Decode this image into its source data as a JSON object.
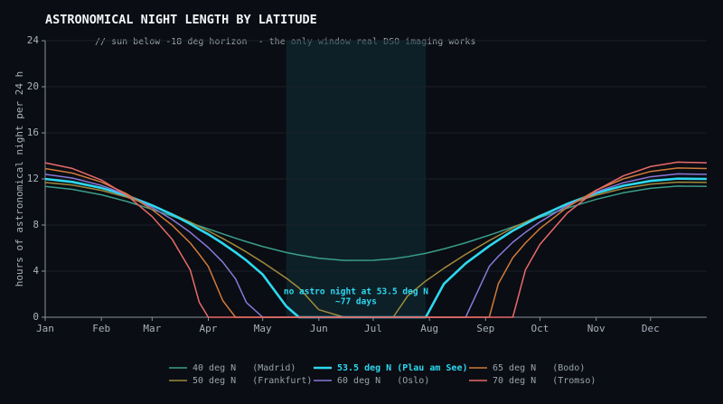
{
  "chart_data": {
    "type": "line",
    "title": "ASTRONOMICAL NIGHT LENGTH BY LATITUDE",
    "subtitle": "// sun below -18 deg horizon  - the only window real DSO imaging works",
    "y_label": "hours of astronomical night per 24 h",
    "annotation": [
      "no astro night at 53.5 deg N",
      "~77 days"
    ],
    "shade_xlim": [
      133,
      210
    ],
    "x": [
      0,
      15,
      31,
      45,
      59,
      70,
      80,
      85,
      90,
      98,
      105,
      111,
      120,
      133,
      140,
      151,
      165,
      181,
      192,
      200,
      210,
      220,
      232,
      245,
      250,
      258,
      265,
      273,
      288,
      304,
      319,
      334,
      349,
      365
    ],
    "xlim": [
      0,
      365
    ],
    "xticks": [
      {
        "value": 0,
        "label": "Jan"
      },
      {
        "value": 31,
        "label": "Feb"
      },
      {
        "value": 59,
        "label": "Mar"
      },
      {
        "value": 90,
        "label": "Apr"
      },
      {
        "value": 120,
        "label": "May"
      },
      {
        "value": 151,
        "label": "Jun"
      },
      {
        "value": 181,
        "label": "Jul"
      },
      {
        "value": 212,
        "label": "Aug"
      },
      {
        "value": 243,
        "label": "Sep"
      },
      {
        "value": 273,
        "label": "Oct"
      },
      {
        "value": 304,
        "label": "Nov"
      },
      {
        "value": 334,
        "label": "Dec"
      }
    ],
    "ylim": [
      0,
      24
    ],
    "yticks": [
      0,
      4,
      8,
      12,
      16,
      20,
      24
    ],
    "grid": true,
    "legend": "bottom",
    "series": [
      {
        "name": "40 deg N   (Madrid)",
        "color": "#3a9e8c",
        "line_width": 1.5,
        "values": [
          11.35,
          11.1,
          10.63,
          10.05,
          9.36,
          8.78,
          8.22,
          7.92,
          7.66,
          7.23,
          6.86,
          6.56,
          6.14,
          5.62,
          5.4,
          5.12,
          4.93,
          4.94,
          5.08,
          5.26,
          5.55,
          5.93,
          6.46,
          7.12,
          7.39,
          7.84,
          8.22,
          8.66,
          9.47,
          10.23,
          10.8,
          11.19,
          11.38,
          11.35
        ]
      },
      {
        "name": "50 deg N   (Frankfurt)",
        "color": "#a08a3a",
        "line_width": 1.5,
        "values": [
          11.7,
          11.47,
          11.01,
          10.42,
          9.66,
          8.97,
          8.26,
          7.86,
          7.49,
          6.83,
          6.21,
          5.66,
          4.77,
          3.39,
          2.55,
          0.65,
          0,
          0,
          0,
          1.85,
          3.15,
          4.25,
          5.46,
          6.65,
          7.08,
          7.75,
          8.26,
          8.84,
          9.78,
          10.6,
          11.17,
          11.55,
          11.73,
          11.7
        ]
      },
      {
        "name": "53.5 deg N (Plau am See)",
        "color": "#2ed8f0",
        "line_width": 2.6,
        "values": [
          12.0,
          11.74,
          11.22,
          10.56,
          9.71,
          8.92,
          8.1,
          7.63,
          7.2,
          6.4,
          5.63,
          4.93,
          3.71,
          0.95,
          0,
          0,
          0,
          0,
          0,
          0,
          0,
          2.9,
          4.67,
          6.18,
          6.7,
          7.51,
          8.1,
          8.77,
          9.84,
          10.77,
          11.41,
          11.83,
          12.03,
          12.0
        ]
      },
      {
        "name": "60 deg N   (Oslo)",
        "color": "#8a78d8",
        "line_width": 1.5,
        "values": [
          12.4,
          12.08,
          11.44,
          10.61,
          9.52,
          8.49,
          7.37,
          6.7,
          6.05,
          4.78,
          3.34,
          1.28,
          0,
          0,
          0,
          0,
          0,
          0,
          0,
          0,
          0,
          0,
          0,
          4.41,
          5.28,
          6.51,
          7.37,
          8.27,
          9.69,
          10.87,
          11.67,
          12.19,
          12.44,
          12.4
        ]
      },
      {
        "name": "65 deg N   (Bodo)",
        "color": "#d07a3a",
        "line_width": 1.5,
        "values": [
          12.9,
          12.51,
          11.73,
          10.71,
          9.34,
          7.99,
          6.45,
          5.46,
          4.41,
          1.44,
          0,
          0,
          0,
          0,
          0,
          0,
          0,
          0,
          0,
          0,
          0,
          0,
          0,
          0,
          2.9,
          5.17,
          6.45,
          7.7,
          9.55,
          11.03,
          12.01,
          12.65,
          12.95,
          12.9
        ]
      },
      {
        "name": "70 deg N   (Tromso)",
        "color": "#e86a6a",
        "line_width": 1.5,
        "values": [
          13.4,
          12.91,
          11.91,
          10.58,
          8.74,
          6.78,
          4.12,
          1.3,
          0,
          0,
          0,
          0,
          0,
          0,
          0,
          0,
          0,
          0,
          0,
          0,
          0,
          0,
          0,
          0,
          0,
          0,
          4.12,
          6.33,
          9.04,
          11.01,
          12.27,
          13.08,
          13.46,
          13.4
        ]
      }
    ]
  }
}
